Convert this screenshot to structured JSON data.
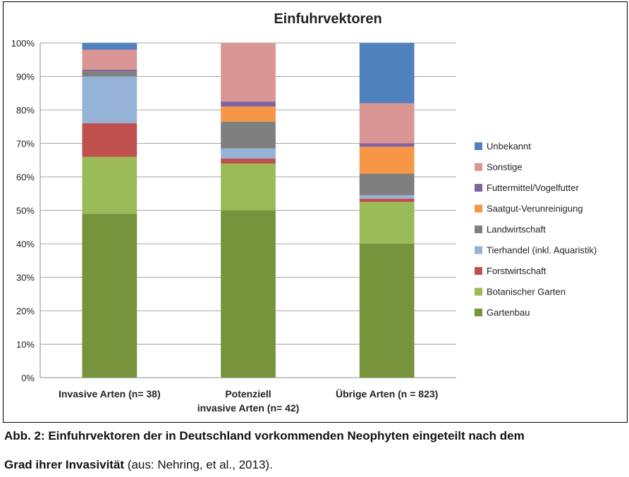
{
  "chart_data": {
    "type": "bar",
    "stacked": true,
    "title": "Einfuhrvektoren",
    "xlabel": "",
    "ylabel": "",
    "ylim": [
      0,
      100
    ],
    "y_ticks": [
      "0%",
      "10%",
      "20%",
      "30%",
      "40%",
      "50%",
      "60%",
      "70%",
      "80%",
      "90%",
      "100%"
    ],
    "grid": true,
    "legend_position": "right",
    "categories": [
      "Invasive Arten (n= 38)",
      "Potenziell invasive Arten (n= 42)",
      "Übrige Arten (n = 823)"
    ],
    "category_label_lines": [
      [
        "Invasive Arten (n= 38)"
      ],
      [
        "Potenziell",
        "invasive Arten (n= 42)"
      ],
      [
        "Übrige Arten (n = 823)"
      ]
    ],
    "series": [
      {
        "name": "Gartenbau",
        "color": "#77933c",
        "values": [
          49,
          50,
          40
        ]
      },
      {
        "name": "Botanischer Garten",
        "color": "#9bbb59",
        "values": [
          17,
          14,
          12.5
        ]
      },
      {
        "name": "Forstwirtschaft",
        "color": "#c0504d",
        "values": [
          10,
          1.5,
          1
        ]
      },
      {
        "name": "Tierhandel (inkl. Aquaristik)",
        "color": "#95b3d7",
        "values": [
          14,
          3,
          1
        ]
      },
      {
        "name": "Landwirtschaft",
        "color": "#7f7f7f",
        "values": [
          1.5,
          8,
          6.5
        ]
      },
      {
        "name": "Saatgut-Verunreinigung",
        "color": "#f79646",
        "values": [
          0,
          4.5,
          8
        ]
      },
      {
        "name": "Futtermittel/Vogelfutter",
        "color": "#8064a2",
        "values": [
          0.5,
          1.5,
          1
        ]
      },
      {
        "name": "Sonstige",
        "color": "#d99694",
        "values": [
          6,
          17.5,
          12
        ]
      },
      {
        "name": "Unbekannt",
        "color": "#4f81bd",
        "values": [
          2,
          0,
          18
        ]
      }
    ]
  },
  "caption": {
    "line1": "Abb. 2: Einfuhrvektoren der in Deutschland vorkommenden Neophyten eingeteilt nach dem",
    "line2_bold": "Grad ihrer Invasivität",
    "line2_rest": " (aus: Nehring, et al., 2013)."
  }
}
